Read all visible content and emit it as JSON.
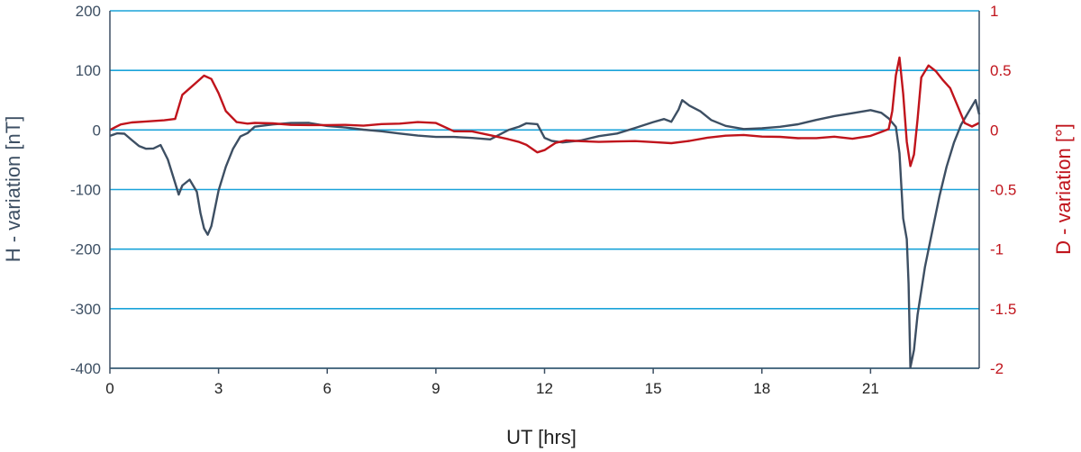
{
  "chart_data": {
    "type": "line",
    "xlabel": "UT [hrs]",
    "ylabel_left": "H - variation [nT]",
    "ylabel_right": "D - variation [°]",
    "xlim": [
      0,
      24
    ],
    "ylim_left": [
      -400,
      200
    ],
    "ylim_right": [
      -2,
      1
    ],
    "x_ticks": [
      0,
      3,
      6,
      9,
      12,
      15,
      18,
      21
    ],
    "y_ticks_left": [
      200,
      100,
      0,
      -100,
      -200,
      -300,
      -400
    ],
    "y_ticks_left_labels": [
      "200",
      "100",
      "0",
      "-100",
      "-200",
      "-300",
      "-400"
    ],
    "y_ticks_right": [
      1,
      0.5,
      0,
      -0.5,
      -1,
      -1.5,
      -2
    ],
    "y_ticks_right_labels": [
      "1",
      "0.5",
      "0",
      "-0.5",
      "-1",
      "-1.5",
      "-2"
    ],
    "grid": "horizontal",
    "colors": {
      "h_series": "#3d4f63",
      "d_series": "#c0141c",
      "grid": "#1aa3d9",
      "left_axis_text": "#3d4f63",
      "right_axis_text": "#c0141c"
    },
    "series": [
      {
        "axis": "left",
        "x": [
          0,
          0.2,
          0.4,
          0.6,
          0.8,
          1.0,
          1.2,
          1.4,
          1.6,
          1.8,
          1.9,
          2.0,
          2.2,
          2.4,
          2.5,
          2.6,
          2.7,
          2.8,
          3.0,
          3.2,
          3.4,
          3.6,
          3.8,
          4.0,
          4.5,
          5.0,
          5.5,
          6.0,
          6.5,
          7.0,
          7.5,
          8.0,
          8.5,
          9.0,
          9.5,
          10.0,
          10.5,
          11.0,
          11.3,
          11.5,
          11.8,
          12.0,
          12.2,
          12.5,
          13.0,
          13.5,
          14.0,
          14.5,
          15.0,
          15.3,
          15.5,
          15.7,
          15.8,
          16.0,
          16.3,
          16.6,
          17.0,
          17.5,
          18.0,
          18.5,
          19.0,
          19.5,
          20.0,
          20.5,
          21.0,
          21.3,
          21.5,
          21.7,
          21.8,
          21.9,
          22.0,
          22.05,
          22.1,
          22.2,
          22.3,
          22.5,
          22.7,
          22.9,
          23.1,
          23.3,
          23.5,
          23.7,
          23.9,
          24.0
        ],
        "y": [
          -10,
          -5,
          -5,
          -15,
          -25,
          -30,
          -30,
          -25,
          -50,
          -90,
          -110,
          -95,
          -85,
          -105,
          -140,
          -165,
          -175,
          -160,
          -100,
          -60,
          -30,
          -10,
          -5,
          5,
          8,
          10,
          10,
          5,
          3,
          0,
          -2,
          -5,
          -8,
          -10,
          -10,
          -12,
          -15,
          0,
          5,
          10,
          8,
          -15,
          -20,
          -22,
          -18,
          -10,
          -5,
          5,
          15,
          20,
          15,
          35,
          50,
          40,
          30,
          15,
          5,
          0,
          2,
          5,
          10,
          18,
          25,
          30,
          35,
          30,
          20,
          5,
          -40,
          -150,
          -185,
          -260,
          -400,
          -370,
          -310,
          -230,
          -170,
          -110,
          -60,
          -20,
          10,
          30,
          50,
          25
        ]
      },
      {
        "axis": "right",
        "x": [
          0,
          0.3,
          0.6,
          1.0,
          1.5,
          1.8,
          2.0,
          2.2,
          2.4,
          2.6,
          2.8,
          3.0,
          3.2,
          3.5,
          3.8,
          4.0,
          4.5,
          5.0,
          5.5,
          6.0,
          6.5,
          7.0,
          7.5,
          8.0,
          8.5,
          9.0,
          9.5,
          10.0,
          10.5,
          11.0,
          11.3,
          11.5,
          11.8,
          12.0,
          12.3,
          12.6,
          13.0,
          13.5,
          14.0,
          14.5,
          15.0,
          15.5,
          16.0,
          16.5,
          17.0,
          17.5,
          18.0,
          18.5,
          19.0,
          19.5,
          20.0,
          20.5,
          21.0,
          21.3,
          21.5,
          21.6,
          21.7,
          21.8,
          21.9,
          22.0,
          22.1,
          22.2,
          22.3,
          22.4,
          22.6,
          22.8,
          23.0,
          23.2,
          23.4,
          23.6,
          23.8,
          24.0
        ],
        "y": [
          0.0,
          0.05,
          0.07,
          0.08,
          0.09,
          0.1,
          0.3,
          0.35,
          0.4,
          0.45,
          0.42,
          0.3,
          0.15,
          0.06,
          0.05,
          0.06,
          0.06,
          0.05,
          0.05,
          0.05,
          0.05,
          0.04,
          0.05,
          0.05,
          0.06,
          0.05,
          -0.02,
          -0.02,
          -0.05,
          -0.08,
          -0.1,
          -0.12,
          -0.18,
          -0.16,
          -0.1,
          -0.08,
          -0.09,
          -0.1,
          -0.1,
          -0.1,
          -0.11,
          -0.12,
          -0.1,
          -0.07,
          -0.05,
          -0.04,
          -0.05,
          -0.05,
          -0.06,
          -0.06,
          -0.05,
          -0.07,
          -0.05,
          -0.02,
          0.0,
          0.15,
          0.45,
          0.6,
          0.3,
          -0.1,
          -0.3,
          -0.2,
          0.1,
          0.45,
          0.55,
          0.5,
          0.42,
          0.35,
          0.2,
          0.05,
          0.02,
          0.05
        ]
      }
    ]
  }
}
